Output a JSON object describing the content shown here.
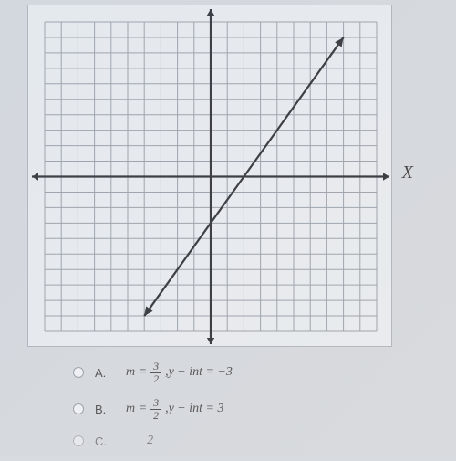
{
  "chart": {
    "type": "line",
    "axis_label_x": "X",
    "xlim": [
      -10,
      10
    ],
    "ylim": [
      -10,
      10
    ],
    "tick_step": 1,
    "grid_color": "#9aa1aa",
    "axis_color": "#2a2d32",
    "background_color": "#ecf0f3",
    "plot": {
      "slope_num": 3,
      "slope_den": 2,
      "y_intercept": -3,
      "line_color": "#2a2d32",
      "line_width": 2.2,
      "x_start": -4,
      "x_end": 8
    },
    "arrow_size": 7
  },
  "answers": {
    "items": [
      {
        "letter": "A.",
        "m_num": "3",
        "m_den": "2",
        "yint_label": "y − int",
        "yint_val": "= −3",
        "sep": ", "
      },
      {
        "letter": "B.",
        "m_num": "3",
        "m_den": "2",
        "yint_label": "y − int",
        "yint_val": "= 3",
        "sep": ", "
      },
      {
        "letter": "C.",
        "m_num": "2",
        "m_den": "",
        "yint_label": "",
        "yint_val": "",
        "sep": ""
      }
    ],
    "m_prefix": "m ="
  }
}
